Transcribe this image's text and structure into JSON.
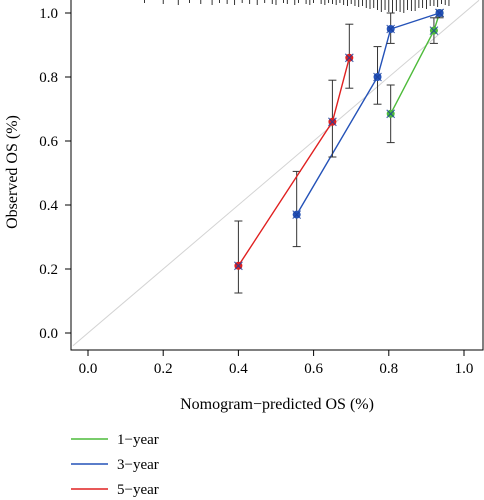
{
  "chart_data": {
    "type": "line",
    "xlabel": "Nomogram−predicted OS (%)",
    "ylabel": "Observed OS (%)",
    "xlim": [
      -0.04,
      1.04
    ],
    "ylim": [
      -0.04,
      1.04
    ],
    "x_ticks": [
      "0.0",
      "0.2",
      "0.4",
      "0.6",
      "0.8",
      "1.0"
    ],
    "y_ticks": [
      "0.0",
      "0.2",
      "0.4",
      "0.6",
      "0.8",
      "1.0"
    ],
    "reference_line": {
      "from": [
        0,
        0
      ],
      "to": [
        1,
        1
      ],
      "color": "#d3d3d3"
    },
    "legend_position": "bottom-left",
    "series": [
      {
        "name": "1−year",
        "color": "#4dbb3a",
        "points": [
          {
            "x": 0.805,
            "y": 0.685,
            "low": 0.595,
            "high": 0.775
          },
          {
            "x": 0.92,
            "y": 0.945,
            "low": 0.905,
            "high": 0.985
          },
          {
            "x": 0.935,
            "y": 1.0,
            "low": 0.985,
            "high": 1.0
          }
        ]
      },
      {
        "name": "3−year",
        "color": "#2452b8",
        "points": [
          {
            "x": 0.555,
            "y": 0.37,
            "low": 0.27,
            "high": 0.505
          },
          {
            "x": 0.77,
            "y": 0.8,
            "low": 0.715,
            "high": 0.895
          },
          {
            "x": 0.805,
            "y": 0.95,
            "low": 0.905,
            "high": 1.0
          },
          {
            "x": 0.935,
            "y": 1.0,
            "low": 0.99,
            "high": 1.0
          }
        ]
      },
      {
        "name": "5−year",
        "color": "#e02020",
        "points": [
          {
            "x": 0.4,
            "y": 0.21,
            "low": 0.125,
            "high": 0.35
          },
          {
            "x": 0.65,
            "y": 0.66,
            "low": 0.55,
            "high": 0.79
          },
          {
            "x": 0.695,
            "y": 0.86,
            "low": 0.765,
            "high": 0.965
          }
        ]
      }
    ],
    "rug": [
      0.15,
      0.2,
      0.24,
      0.27,
      0.3,
      0.33,
      0.35,
      0.37,
      0.39,
      0.41,
      0.43,
      0.45,
      0.47,
      0.49,
      0.5,
      0.52,
      0.53,
      0.55,
      0.56,
      0.58,
      0.59,
      0.6,
      0.62,
      0.63,
      0.64,
      0.65,
      0.66,
      0.67,
      0.68,
      0.69,
      0.7,
      0.71,
      0.72,
      0.73,
      0.74,
      0.75,
      0.76,
      0.77,
      0.78,
      0.79,
      0.8,
      0.81,
      0.82,
      0.83,
      0.84,
      0.85,
      0.86,
      0.87,
      0.88,
      0.89,
      0.9,
      0.91,
      0.92,
      0.93,
      0.94,
      0.95,
      0.96
    ]
  }
}
